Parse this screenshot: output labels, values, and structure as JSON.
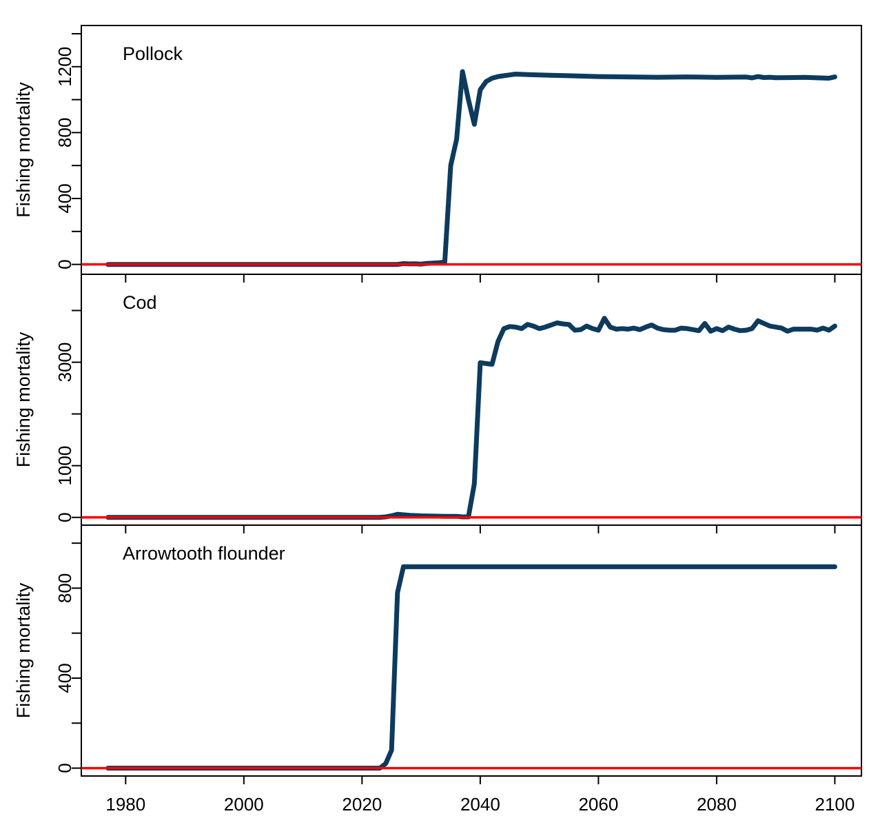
{
  "colors": {
    "series_line": "#0d3b5e",
    "baseline": "#ff0000",
    "frame": "#000000",
    "background": "#ffffff"
  },
  "chart_data": [
    {
      "type": "line",
      "title": "Pollock",
      "ylabel": "Fishing mortality",
      "xlabel": "",
      "xlim": [
        1972.5,
        2104.5
      ],
      "ylim": [
        -60,
        1450
      ],
      "x_ticks": [
        1980,
        2000,
        2020,
        2040,
        2060,
        2080,
        2100
      ],
      "y_ticks": [
        0,
        200,
        400,
        600,
        800,
        1000,
        1200,
        1400
      ],
      "y_tick_labels": [
        {
          "value": 0,
          "label": "0"
        },
        {
          "value": 400,
          "label": "400"
        },
        {
          "value": 800,
          "label": "800"
        },
        {
          "value": 1200,
          "label": "1200"
        }
      ],
      "show_x_tick_labels": false,
      "baseline": 0,
      "grid": false,
      "series": [
        {
          "x": [
            1977,
            2024,
            2025,
            2026,
            2027,
            2028,
            2029,
            2030,
            2031,
            2032,
            2033,
            2034,
            2035,
            2036,
            2037,
            2038,
            2039,
            2040,
            2041,
            2042,
            2043,
            2044,
            2045,
            2046,
            2048,
            2050,
            2052,
            2055,
            2060,
            2065,
            2070,
            2075,
            2080,
            2085,
            2086,
            2087,
            2088,
            2089,
            2090,
            2095,
            2099,
            2100
          ],
          "y": [
            0,
            0,
            0,
            0,
            5,
            3,
            4,
            2,
            6,
            8,
            10,
            15,
            600,
            760,
            1170,
            1000,
            850,
            1060,
            1110,
            1130,
            1140,
            1145,
            1150,
            1155,
            1152,
            1150,
            1148,
            1145,
            1140,
            1138,
            1136,
            1138,
            1135,
            1137,
            1132,
            1140,
            1134,
            1136,
            1133,
            1135,
            1130,
            1138
          ]
        }
      ]
    },
    {
      "type": "line",
      "title": "Cod",
      "ylabel": "Fishing mortality",
      "xlabel": "",
      "xlim": [
        1972.5,
        2104.5
      ],
      "ylim": [
        -150,
        4700
      ],
      "x_ticks": [
        1980,
        2000,
        2020,
        2040,
        2060,
        2080,
        2100
      ],
      "y_ticks": [
        0,
        1000,
        2000,
        3000,
        4000
      ],
      "y_tick_labels": [
        {
          "value": 0,
          "label": "0"
        },
        {
          "value": 1000,
          "label": "1000"
        },
        {
          "value": 3000,
          "label": "3000"
        }
      ],
      "show_x_tick_labels": false,
      "baseline": 0,
      "grid": false,
      "series": [
        {
          "x": [
            1977,
            2022,
            2023,
            2024,
            2025,
            2026,
            2028,
            2030,
            2032,
            2034,
            2036,
            2037,
            2038,
            2039,
            2040,
            2041,
            2042,
            2043,
            2044,
            2045,
            2046,
            2047,
            2048,
            2049,
            2050,
            2051,
            2052,
            2053,
            2054,
            2055,
            2056,
            2057,
            2058,
            2059,
            2060,
            2061,
            2062,
            2063,
            2064,
            2065,
            2066,
            2067,
            2068,
            2069,
            2070,
            2071,
            2072,
            2073,
            2074,
            2075,
            2076,
            2077,
            2078,
            2079,
            2080,
            2081,
            2082,
            2083,
            2084,
            2085,
            2086,
            2087,
            2088,
            2089,
            2090,
            2091,
            2092,
            2093,
            2094,
            2095,
            2096,
            2097,
            2098,
            2099,
            2100
          ],
          "y": [
            0,
            0,
            0,
            10,
            30,
            60,
            40,
            30,
            25,
            20,
            20,
            10,
            10,
            650,
            2990,
            2975,
            2960,
            3400,
            3650,
            3690,
            3680,
            3650,
            3730,
            3700,
            3650,
            3680,
            3720,
            3760,
            3740,
            3730,
            3620,
            3630,
            3700,
            3650,
            3620,
            3850,
            3680,
            3640,
            3650,
            3640,
            3660,
            3630,
            3680,
            3720,
            3660,
            3630,
            3620,
            3620,
            3660,
            3650,
            3630,
            3610,
            3750,
            3600,
            3650,
            3610,
            3680,
            3640,
            3610,
            3620,
            3650,
            3800,
            3750,
            3700,
            3680,
            3660,
            3600,
            3640,
            3640,
            3640,
            3640,
            3620,
            3660,
            3620,
            3700
          ]
        }
      ]
    },
    {
      "type": "line",
      "title": "Arrowtooth flounder",
      "ylabel": "Fishing mortality",
      "xlabel": "",
      "xlim": [
        1972.5,
        2104.5
      ],
      "ylim": [
        -35,
        1080
      ],
      "x_ticks": [
        1980,
        2000,
        2020,
        2040,
        2060,
        2080,
        2100
      ],
      "y_ticks": [
        0,
        200,
        400,
        600,
        800,
        1000
      ],
      "y_tick_labels": [
        {
          "value": 0,
          "label": "0"
        },
        {
          "value": 400,
          "label": "400"
        },
        {
          "value": 800,
          "label": "800"
        }
      ],
      "x_tick_labels": [
        {
          "value": 1980,
          "label": "1980"
        },
        {
          "value": 2000,
          "label": "2000"
        },
        {
          "value": 2020,
          "label": "2020"
        },
        {
          "value": 2040,
          "label": "2040"
        },
        {
          "value": 2060,
          "label": "2060"
        },
        {
          "value": 2080,
          "label": "2080"
        },
        {
          "value": 2100,
          "label": "2100"
        }
      ],
      "show_x_tick_labels": true,
      "baseline": 0,
      "grid": false,
      "series": [
        {
          "x": [
            1977,
            2023,
            2024,
            2025,
            2026,
            2027,
            2028,
            2100
          ],
          "y": [
            0,
            0,
            20,
            80,
            780,
            895,
            895,
            895
          ]
        }
      ]
    }
  ]
}
